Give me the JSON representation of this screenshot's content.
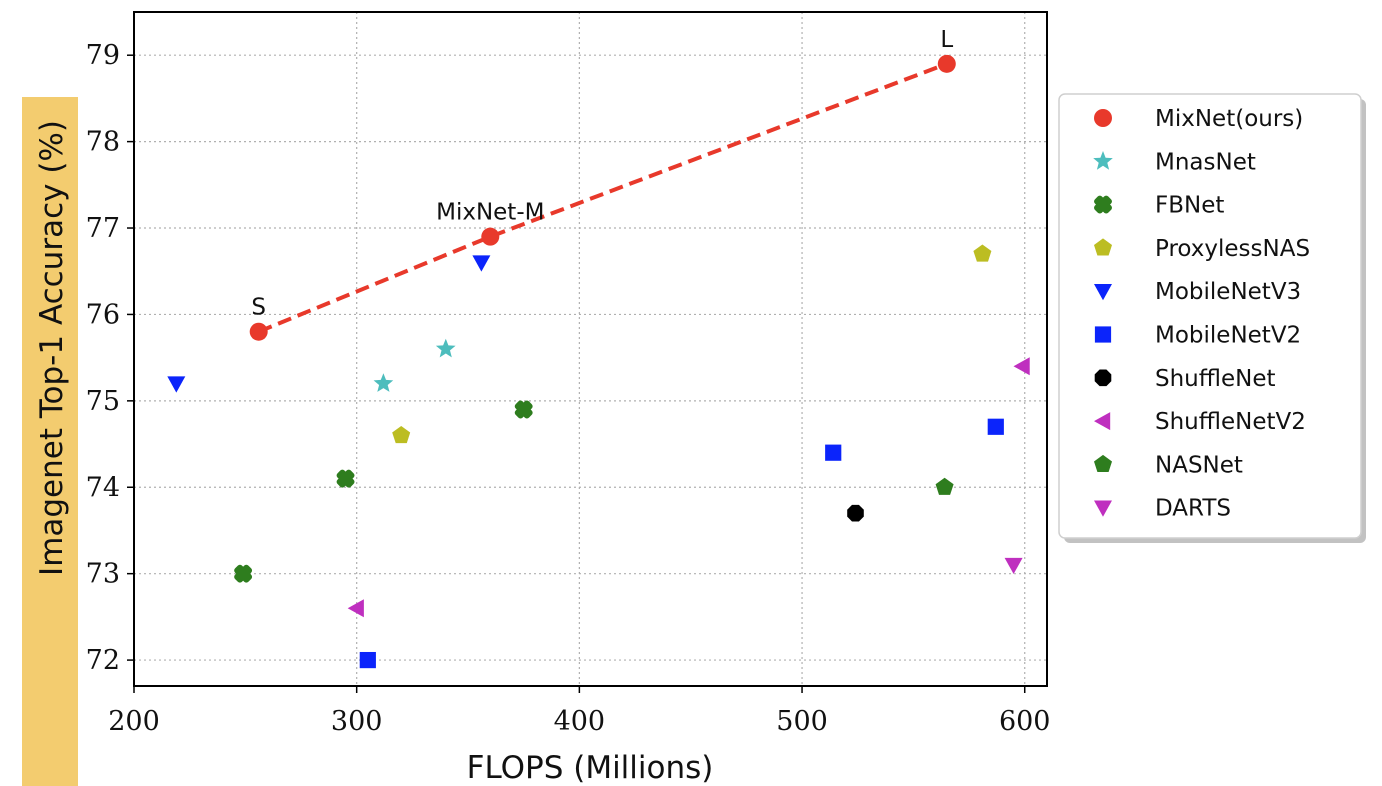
{
  "chart_data": {
    "type": "scatter",
    "xlabel": "FLOPS (Millions)",
    "ylabel": "Imagenet Top-1 Accuracy (%)",
    "xlim": [
      200,
      610
    ],
    "ylim": [
      71.7,
      79.5
    ],
    "xticks": [
      200,
      300,
      400,
      500,
      600
    ],
    "yticks": [
      72,
      73,
      74,
      75,
      76,
      77,
      78,
      79
    ],
    "grid": true,
    "legend_position": "right",
    "series": [
      {
        "name": "MixNet(ours)",
        "color": "#e8392b",
        "marker": "circle",
        "points": [
          [
            256,
            75.8
          ],
          [
            360,
            76.9
          ],
          [
            565,
            78.9
          ]
        ]
      },
      {
        "name": "MnasNet",
        "color": "#4dbdbd",
        "marker": "star",
        "points": [
          [
            312,
            75.2
          ],
          [
            340,
            75.6
          ]
        ]
      },
      {
        "name": "FBNet",
        "color": "#2e7d1e",
        "marker": "X",
        "points": [
          [
            249,
            73.0
          ],
          [
            295,
            74.1
          ],
          [
            375,
            74.9
          ]
        ]
      },
      {
        "name": "ProxylessNAS",
        "color": "#bcbd22",
        "marker": "pentagon",
        "points": [
          [
            320,
            74.6
          ],
          [
            581,
            76.7
          ]
        ]
      },
      {
        "name": "MobileNetV3",
        "color": "#0b24fb",
        "marker": "triangle-down",
        "points": [
          [
            219,
            75.2
          ],
          [
            356,
            76.6
          ]
        ]
      },
      {
        "name": "MobileNetV2",
        "color": "#0b24fb",
        "marker": "square",
        "points": [
          [
            305,
            72.0
          ],
          [
            514,
            74.4
          ],
          [
            587,
            74.7
          ]
        ]
      },
      {
        "name": "ShuffleNet",
        "color": "#000000",
        "marker": "octagon",
        "points": [
          [
            524,
            73.7
          ]
        ]
      },
      {
        "name": "ShuffleNetV2",
        "color": "#bf2fbf",
        "marker": "triangle-left",
        "points": [
          [
            300,
            72.6
          ],
          [
            599,
            75.4
          ]
        ]
      },
      {
        "name": "NASNet",
        "color": "#2e7d1e",
        "marker": "pentagon",
        "points": [
          [
            564,
            74.0
          ]
        ]
      },
      {
        "name": "DARTS",
        "color": "#bf2fbf",
        "marker": "triangle-down",
        "points": [
          [
            595,
            73.1
          ]
        ]
      }
    ],
    "trendline": {
      "series": "MixNet(ours)",
      "color": "#e8392b",
      "style": "dashed"
    },
    "annotations": [
      {
        "text": "S",
        "point": [
          256,
          75.8
        ]
      },
      {
        "text": "MixNet-M",
        "point": [
          360,
          76.9
        ]
      },
      {
        "text": "L",
        "point": [
          565,
          78.9
        ]
      }
    ],
    "ylabel_highlight_color": "#f3cc6f"
  }
}
